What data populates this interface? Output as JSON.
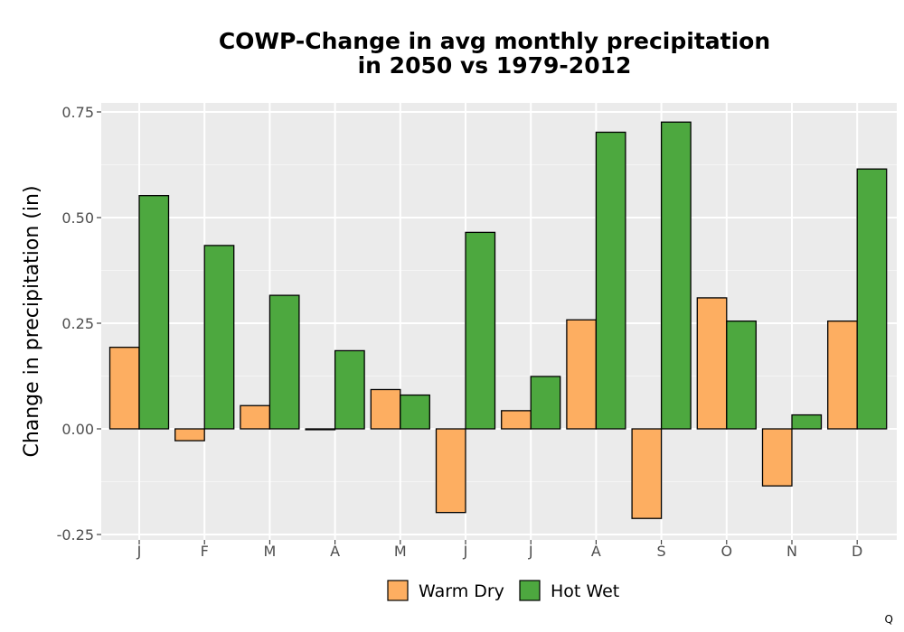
{
  "chart_data": {
    "type": "bar",
    "title_lines": [
      "COWP-Change in avg monthly precipitation",
      "in 2050 vs 1979-2012"
    ],
    "xlabel": "",
    "ylabel": "Change in precipitation (in)",
    "categories": [
      "J",
      "F",
      "M",
      "A",
      "M",
      "J",
      "J",
      "A",
      "S",
      "O",
      "N",
      "D"
    ],
    "series": [
      {
        "name": "Warm Dry",
        "color": "#FDAE61",
        "values": [
          0.193,
          -0.028,
          0.055,
          -0.002,
          0.093,
          -0.198,
          0.043,
          0.258,
          -0.212,
          0.31,
          -0.135,
          0.255
        ]
      },
      {
        "name": "Hot Wet",
        "color": "#4DA83F",
        "values": [
          0.552,
          0.434,
          0.316,
          0.185,
          0.08,
          0.465,
          0.124,
          0.702,
          0.726,
          0.255,
          0.033,
          0.615
        ]
      }
    ],
    "ylim": [
      -0.25,
      0.77
    ],
    "yticks": [
      -0.25,
      0.0,
      0.25,
      0.5,
      0.75
    ],
    "ytick_labels": [
      "-0.25",
      "0.00",
      "0.25",
      "0.50",
      "0.75"
    ],
    "grid": true,
    "legend_position": "bottom"
  },
  "caption": "Q"
}
